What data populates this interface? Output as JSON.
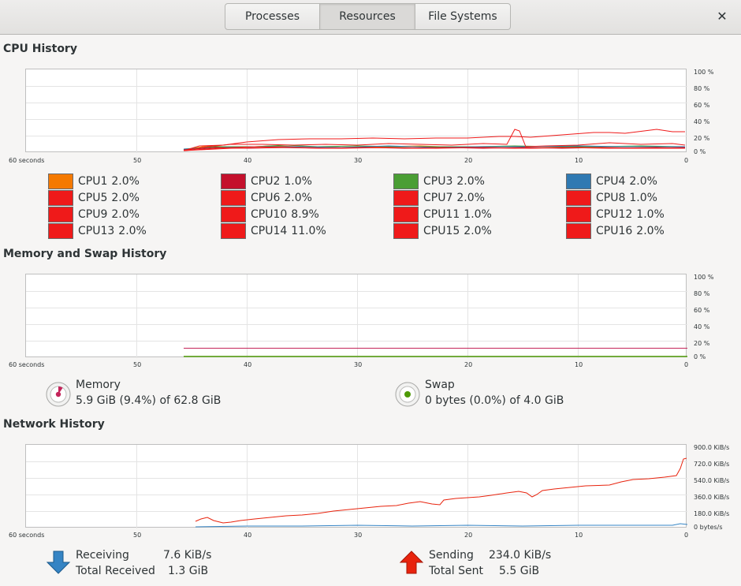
{
  "tabs": [
    {
      "label": "Processes"
    },
    {
      "label": "Resources"
    },
    {
      "label": "File Systems"
    }
  ],
  "close_glyph": "✕",
  "axis": {
    "x_labels": [
      "60 seconds",
      "50",
      "40",
      "30",
      "20",
      "10",
      "0"
    ],
    "percent_labels": [
      "100 %",
      "80 %",
      "60 %",
      "40 %",
      "20 %",
      "0 %"
    ],
    "network_labels": [
      "900.0 KiB/s",
      "720.0 KiB/s",
      "540.0 KiB/s",
      "360.0 KiB/s",
      "180.0 KiB/s",
      "0 bytes/s"
    ]
  },
  "cpu": {
    "title": "CPU History",
    "items": [
      {
        "name": "CPU1",
        "value": "2.0%",
        "color": "#f57900"
      },
      {
        "name": "CPU2",
        "value": "1.0%",
        "color": "#c4102c"
      },
      {
        "name": "CPU3",
        "value": "2.0%",
        "color": "#4a9e34"
      },
      {
        "name": "CPU4",
        "value": "2.0%",
        "color": "#2f79b2"
      },
      {
        "name": "CPU5",
        "value": "2.0%",
        "color": "#ef1a1a"
      },
      {
        "name": "CPU6",
        "value": "2.0%",
        "color": "#ef1a1a"
      },
      {
        "name": "CPU7",
        "value": "2.0%",
        "color": "#ef1a1a"
      },
      {
        "name": "CPU8",
        "value": "1.0%",
        "color": "#ef1a1a"
      },
      {
        "name": "CPU9",
        "value": "2.0%",
        "color": "#ef1a1a"
      },
      {
        "name": "CPU10",
        "value": "8.9%",
        "color": "#ef1a1a"
      },
      {
        "name": "CPU11",
        "value": "1.0%",
        "color": "#ef1a1a"
      },
      {
        "name": "CPU12",
        "value": "1.0%",
        "color": "#ef1a1a"
      },
      {
        "name": "CPU13",
        "value": "2.0%",
        "color": "#ef1a1a"
      },
      {
        "name": "CPU14",
        "value": "11.0%",
        "color": "#ef1a1a"
      },
      {
        "name": "CPU15",
        "value": "2.0%",
        "color": "#ef1a1a"
      },
      {
        "name": "CPU16",
        "value": "2.0%",
        "color": "#ef1a1a"
      }
    ]
  },
  "memory": {
    "title": "Memory and Swap History",
    "memory_label": "Memory",
    "memory_value": "5.9 GiB (9.4%) of 62.8 GiB",
    "memory_fraction": 0.094,
    "memory_color": "#c4245a",
    "swap_label": "Swap",
    "swap_value": "0 bytes (0.0%) of 4.0 GiB",
    "swap_fraction": 0.0,
    "swap_color": "#4e9a06"
  },
  "network": {
    "title": "Network History",
    "receiving_label": "Receiving",
    "receiving_value": "7.6 KiB/s",
    "total_received_label": "Total Received",
    "total_received_value": "1.3 GiB",
    "sending_label": "Sending",
    "sending_value": "234.0 KiB/s",
    "total_sent_label": "Total Sent",
    "total_sent_value": "5.5 GiB",
    "receive_color": "#3584c4",
    "send_color": "#e8230d"
  }
}
